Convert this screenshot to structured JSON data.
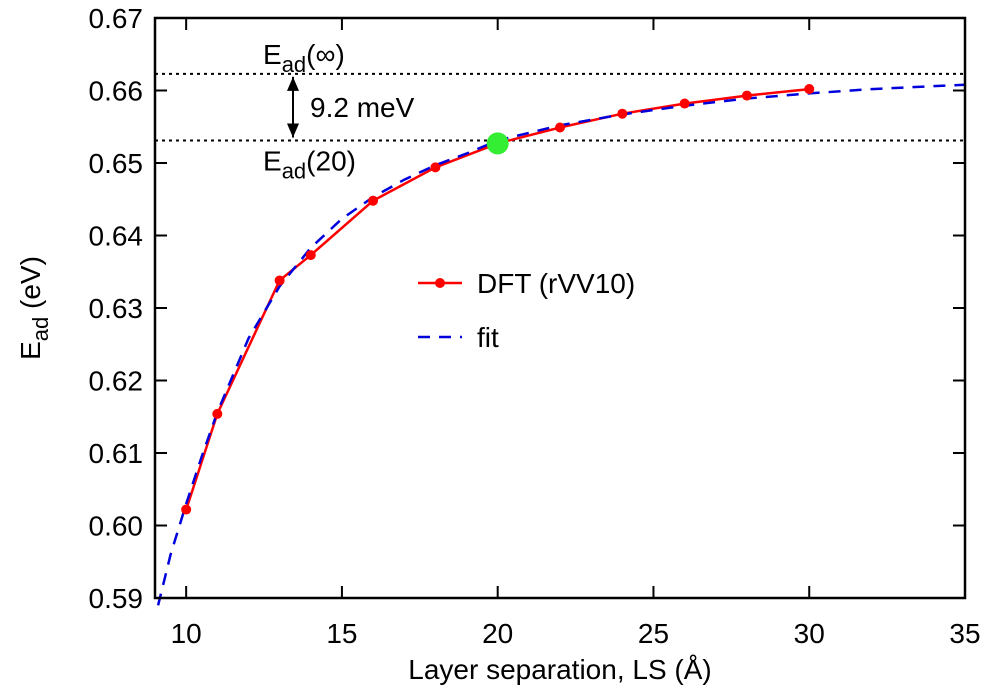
{
  "chart_data": {
    "type": "line",
    "xlabel": "Layer separation, LS (Å)",
    "ylabel": {
      "main": "E",
      "sub": "ad",
      "rest": " (eV)"
    },
    "xlim": [
      9,
      35
    ],
    "ylim": [
      0.59,
      0.67
    ],
    "xticks": [
      10,
      15,
      20,
      25,
      30,
      35
    ],
    "xtick_labels": [
      "10",
      "15",
      "20",
      "25",
      "30",
      "35"
    ],
    "yticks": [
      0.59,
      0.6,
      0.61,
      0.62,
      0.63,
      0.64,
      0.65,
      0.66,
      0.67
    ],
    "ytick_labels": [
      "0.59",
      "0.60",
      "0.61",
      "0.62",
      "0.63",
      "0.64",
      "0.65",
      "0.66",
      "0.67"
    ],
    "grid": false,
    "legend_position": "center-right",
    "series": [
      {
        "name": "DFT (rVV10)",
        "style": "solid-with-markers",
        "color": "#ff0000",
        "x": [
          10,
          11,
          13,
          14,
          16,
          18,
          20,
          22,
          24,
          26,
          28,
          30
        ],
        "y": [
          0.6022,
          0.6154,
          0.6338,
          0.6373,
          0.6448,
          0.6494,
          0.6527,
          0.6549,
          0.6568,
          0.6582,
          0.6593,
          0.6602
        ]
      },
      {
        "name": "fit",
        "style": "dashed",
        "color": "#0000dd",
        "x": [
          9.1,
          9.5,
          10,
          10.5,
          11,
          12,
          13,
          14,
          15,
          16,
          17,
          18,
          19,
          20,
          22,
          24,
          26,
          28,
          30,
          32,
          35
        ],
        "y": [
          0.589,
          0.596,
          0.603,
          0.6095,
          0.6156,
          0.6258,
          0.633,
          0.6383,
          0.6423,
          0.6453,
          0.6477,
          0.6497,
          0.6513,
          0.6531,
          0.6552,
          0.6567,
          0.6579,
          0.6589,
          0.6596,
          0.6602,
          0.6608
        ]
      }
    ],
    "highlight_point": {
      "x": 20,
      "y": 0.6527,
      "color": "#33ee33"
    },
    "reference_lines": [
      {
        "y": 0.6623,
        "label_main": "E",
        "label_sub": "ad",
        "label_rest": "(∞)"
      },
      {
        "y": 0.6531,
        "label_main": "E",
        "label_sub": "ad",
        "label_rest": "(20)"
      }
    ],
    "annotation": {
      "text": "9.2 meV"
    }
  }
}
